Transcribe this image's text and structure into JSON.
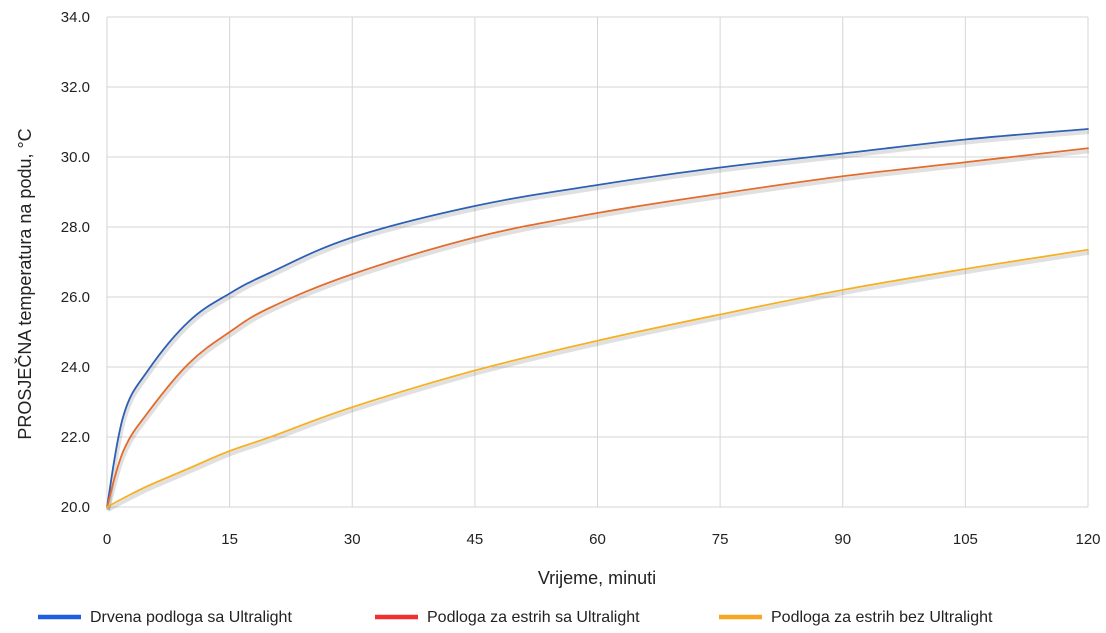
{
  "chart_data": {
    "type": "line",
    "title": "",
    "xlabel": "Vrijeme, minuti",
    "ylabel": "PROSJEČNA temperatura na podu, °C",
    "xlim": [
      0,
      120
    ],
    "ylim": [
      20,
      34
    ],
    "x_ticks": [
      0,
      15,
      30,
      45,
      60,
      75,
      90,
      105,
      120
    ],
    "y_ticks": [
      20,
      22,
      24,
      26,
      28,
      30,
      32,
      34
    ],
    "y_tick_labels": [
      "20.0",
      "22.0",
      "24.0",
      "26.0",
      "28.0",
      "30.0",
      "32.0",
      "34.0"
    ],
    "grid": true,
    "legend_position": "bottom",
    "x": [
      0,
      2,
      5,
      10,
      15,
      20,
      30,
      45,
      60,
      75,
      90,
      105,
      120
    ],
    "series": [
      {
        "name": "Drvena podloga sa Ultralight",
        "color": "#2e5fb3",
        "values": [
          20.0,
          22.6,
          23.9,
          25.3,
          26.1,
          26.7,
          27.7,
          28.6,
          29.2,
          29.7,
          30.1,
          30.5,
          30.8
        ]
      },
      {
        "name": "Podloga za estrih sa Ultralight",
        "color": "#e36b2c",
        "values": [
          20.0,
          21.6,
          22.7,
          24.1,
          25.0,
          25.7,
          26.65,
          27.7,
          28.4,
          28.95,
          29.45,
          29.85,
          30.25
        ]
      },
      {
        "name": "Podloga za estrih bez Ultralight",
        "color": "#f5b025",
        "values": [
          20.0,
          20.25,
          20.6,
          21.1,
          21.6,
          22.0,
          22.85,
          23.9,
          24.75,
          25.5,
          26.2,
          26.8,
          27.35
        ]
      }
    ],
    "legend_colors": [
      "#1e5fe0",
      "#f03030",
      "#f5a623"
    ]
  }
}
